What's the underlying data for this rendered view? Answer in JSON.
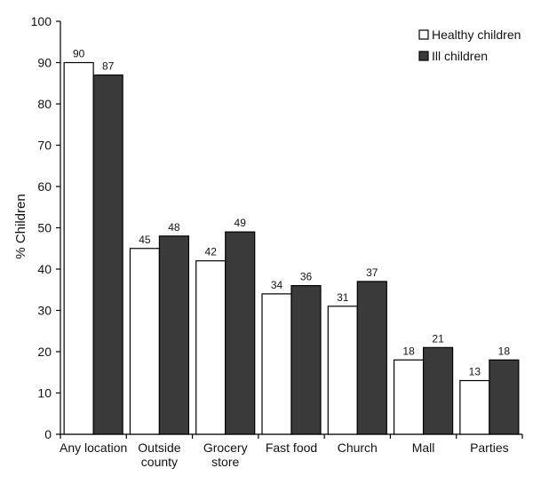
{
  "chart_data": {
    "type": "bar",
    "title": "",
    "xlabel": "",
    "ylabel": "% Children",
    "ylim": [
      0,
      100
    ],
    "yticks": [
      0,
      10,
      20,
      30,
      40,
      50,
      60,
      70,
      80,
      90,
      100
    ],
    "categories": [
      [
        "Any location"
      ],
      [
        "Outside",
        "county"
      ],
      [
        "Grocery",
        "store"
      ],
      [
        "Fast food"
      ],
      [
        "Church"
      ],
      [
        "Mall"
      ],
      [
        "Parties"
      ]
    ],
    "series": [
      {
        "name": "Healthy children",
        "values": [
          90,
          45,
          42,
          34,
          31,
          18,
          13
        ],
        "color": "#ffffff"
      },
      {
        "name": "Ill children",
        "values": [
          87,
          48,
          49,
          36,
          37,
          21,
          18
        ],
        "color": "#3a3a3a"
      }
    ],
    "legend_position": "top-right",
    "grid": false
  }
}
